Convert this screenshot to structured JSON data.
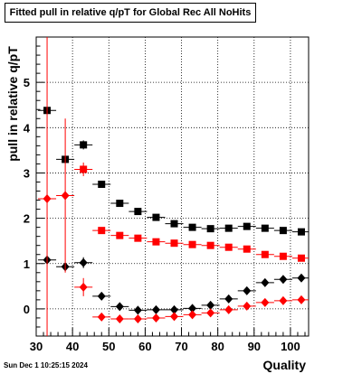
{
  "title": "Fitted pull in relative q/pT for Global Rec All NoHits",
  "timestamp": "Sun Dec  1 10:25:15 2024",
  "chart_data": {
    "type": "scatter",
    "title": "Fitted pull in relative q/pT for Global Rec All NoHits",
    "xlabel": "Quality",
    "ylabel": "pull in relative q/pT",
    "xlim": [
      30,
      105
    ],
    "ylim": [
      -0.6,
      6
    ],
    "xticks": [
      30,
      40,
      50,
      60,
      70,
      80,
      90,
      100
    ],
    "yticks": [
      0,
      1,
      2,
      3,
      4,
      5
    ],
    "grid": true,
    "legend": "none",
    "series": [
      {
        "marker": "square",
        "color": "#000000",
        "x": [
          33,
          38,
          43,
          48,
          53,
          58,
          63,
          68,
          73,
          78,
          83,
          88,
          93,
          98,
          103
        ],
        "y": [
          4.38,
          3.3,
          3.62,
          2.75,
          2.33,
          2.15,
          2.02,
          1.88,
          1.8,
          1.77,
          1.78,
          1.82,
          1.78,
          1.73,
          1.7
        ],
        "yerr": [
          0,
          0,
          0.1,
          0,
          0,
          0,
          0,
          0,
          0,
          0,
          0,
          0,
          0,
          0,
          0
        ]
      },
      {
        "marker": "square",
        "color": "#ff0000",
        "x": [
          43,
          48,
          53,
          58,
          63,
          68,
          73,
          78,
          83,
          88,
          93,
          98,
          103
        ],
        "y": [
          3.08,
          1.73,
          1.62,
          1.56,
          1.48,
          1.45,
          1.42,
          1.4,
          1.36,
          1.32,
          1.2,
          1.16,
          1.12
        ],
        "yerr": [
          0.15,
          0,
          0,
          0,
          0,
          0,
          0,
          0,
          0,
          0,
          0,
          0,
          0
        ]
      },
      {
        "marker": "diamond",
        "color": "#000000",
        "x": [
          33,
          38,
          43,
          48,
          53,
          58,
          63,
          68,
          73,
          78,
          83,
          88,
          93,
          98,
          103
        ],
        "y": [
          1.08,
          0.93,
          1.02,
          0.28,
          0.05,
          -0.03,
          -0.02,
          -0.02,
          0.01,
          0.08,
          0.22,
          0.4,
          0.58,
          0.65,
          0.68
        ],
        "yerr": [
          0,
          0,
          0.12,
          0,
          0,
          0,
          0,
          0,
          0,
          0,
          0,
          0,
          0,
          0,
          0
        ]
      },
      {
        "marker": "diamond",
        "color": "#ff0000",
        "x": [
          33,
          38,
          43,
          48,
          53,
          58,
          63,
          68,
          73,
          78,
          83,
          88,
          93,
          98,
          103
        ],
        "y": [
          2.43,
          2.5,
          0.48,
          -0.18,
          -0.22,
          -0.22,
          -0.2,
          -0.17,
          -0.13,
          -0.09,
          -0.02,
          0.06,
          0.14,
          0.18,
          0.2
        ],
        "yerr": [
          7,
          1.7,
          0.2,
          0,
          0,
          0,
          0,
          0,
          0,
          0,
          0,
          0,
          0,
          0,
          0
        ]
      }
    ]
  }
}
